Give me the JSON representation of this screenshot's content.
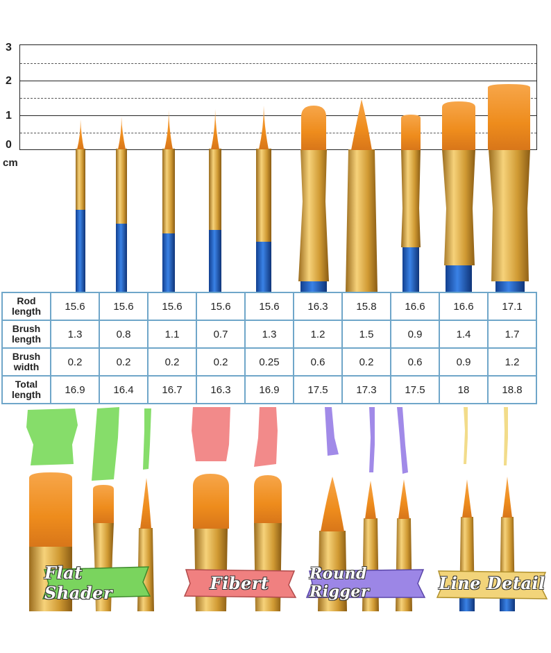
{
  "ruler": {
    "unit": "cm",
    "ticks": [
      "3",
      "2",
      "1",
      "0"
    ]
  },
  "colors": {
    "ferrule": "#d4a23c",
    "handle": "#1f5fc4",
    "bristle": "#f08a1a",
    "table_border": "#6fa6c9",
    "green_paint": "#86dd6a",
    "pink_paint": "#f28a8a",
    "purple_paint": "#a18ae8",
    "yellow_paint": "#f2dc8a"
  },
  "table": {
    "rows": [
      {
        "label": "Rod length",
        "values": [
          "15.6",
          "15.6",
          "15.6",
          "15.6",
          "15.6",
          "16.3",
          "15.8",
          "16.6",
          "16.6",
          "17.1"
        ]
      },
      {
        "label": "Brush length",
        "values": [
          "1.3",
          "0.8",
          "1.1",
          "0.7",
          "1.3",
          "1.2",
          "1.5",
          "0.9",
          "1.4",
          "1.7"
        ]
      },
      {
        "label": "Brush width",
        "values": [
          "0.2",
          "0.2",
          "0.2",
          "0.2",
          "0.25",
          "0.6",
          "0.2",
          "0.6",
          "0.9",
          "1.2"
        ]
      },
      {
        "label": "Total length",
        "values": [
          "16.9",
          "16.4",
          "16.7",
          "16.3",
          "16.9",
          "17.5",
          "17.3",
          "17.5",
          "18",
          "18.8"
        ]
      }
    ]
  },
  "labels": {
    "flat_shader": "Flat Shader",
    "fibert": "Fibert",
    "round_rigger": "Round Rigger",
    "line_detail": "Line Detail"
  }
}
